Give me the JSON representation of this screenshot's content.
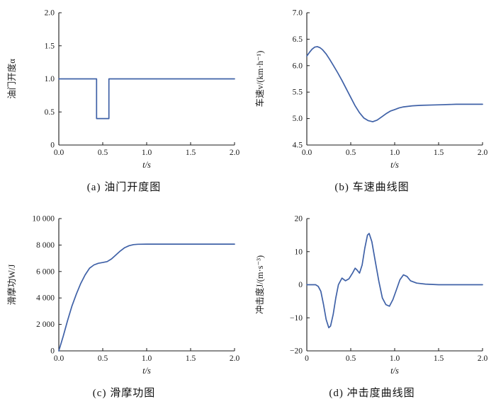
{
  "style": {
    "line_color": "#3f61a7",
    "axis_color": "#1a1a1a",
    "background": "#ffffff"
  },
  "chart_data": [
    {
      "id": "a",
      "type": "line",
      "caption": "(a) 油门开度图",
      "xlabel": "t/s",
      "ylabel": "油门开度α",
      "xlim": [
        0,
        2
      ],
      "ylim": [
        0,
        2
      ],
      "xticks": [
        0,
        0.5,
        1,
        1.5,
        2
      ],
      "xtick_labels": [
        "0.0",
        "0.5",
        "1.0",
        "1.5",
        "2.0"
      ],
      "yticks": [
        0,
        0.5,
        1,
        1.5,
        2
      ],
      "ytick_labels": [
        "0",
        "0.5",
        "1.0",
        "1.5",
        "2.0"
      ],
      "points": [
        [
          0,
          1
        ],
        [
          0.43,
          1
        ],
        [
          0.43,
          0.4
        ],
        [
          0.57,
          0.4
        ],
        [
          0.57,
          1
        ],
        [
          2,
          1
        ]
      ]
    },
    {
      "id": "b",
      "type": "line",
      "caption": "(b) 车速曲线图",
      "xlabel": "t/s",
      "ylabel": "车速v/(km·h⁻¹)",
      "xlim": [
        0,
        2
      ],
      "ylim": [
        4.5,
        7
      ],
      "xticks": [
        0,
        0.5,
        1,
        1.5,
        2
      ],
      "xtick_labels": [
        "0.0",
        "0.5",
        "1.0",
        "1.5",
        "2.0"
      ],
      "yticks": [
        4.5,
        5,
        5.5,
        6,
        6.5,
        7
      ],
      "ytick_labels": [
        "4.5",
        "5.0",
        "5.5",
        "6.0",
        "6.5",
        "7.0"
      ],
      "points": [
        [
          0,
          6.18
        ],
        [
          0.03,
          6.25
        ],
        [
          0.06,
          6.31
        ],
        [
          0.09,
          6.35
        ],
        [
          0.12,
          6.36
        ],
        [
          0.15,
          6.34
        ],
        [
          0.18,
          6.3
        ],
        [
          0.22,
          6.22
        ],
        [
          0.26,
          6.12
        ],
        [
          0.3,
          6.01
        ],
        [
          0.35,
          5.87
        ],
        [
          0.4,
          5.72
        ],
        [
          0.45,
          5.56
        ],
        [
          0.5,
          5.4
        ],
        [
          0.55,
          5.24
        ],
        [
          0.6,
          5.11
        ],
        [
          0.65,
          5.01
        ],
        [
          0.7,
          4.96
        ],
        [
          0.75,
          4.94
        ],
        [
          0.8,
          4.97
        ],
        [
          0.85,
          5.03
        ],
        [
          0.9,
          5.09
        ],
        [
          0.95,
          5.14
        ],
        [
          1.0,
          5.17
        ],
        [
          1.05,
          5.2
        ],
        [
          1.1,
          5.22
        ],
        [
          1.2,
          5.24
        ],
        [
          1.3,
          5.25
        ],
        [
          1.5,
          5.26
        ],
        [
          1.7,
          5.27
        ],
        [
          2.0,
          5.27
        ]
      ]
    },
    {
      "id": "c",
      "type": "line",
      "caption": "(c) 滑摩功图",
      "xlabel": "t/s",
      "ylabel": "滑摩功W/J",
      "xlim": [
        0,
        2
      ],
      "ylim": [
        0,
        10000
      ],
      "xticks": [
        0,
        0.5,
        1,
        1.5,
        2
      ],
      "xtick_labels": [
        "0.0",
        "0.5",
        "1.0",
        "1.5",
        "2.0"
      ],
      "yticks": [
        0,
        2000,
        4000,
        6000,
        8000,
        10000
      ],
      "ytick_labels": [
        "0",
        "2 000",
        "4 000",
        "6 000",
        "8 000",
        "10 000"
      ],
      "points": [
        [
          0,
          0
        ],
        [
          0.05,
          1100
        ],
        [
          0.1,
          2300
        ],
        [
          0.15,
          3400
        ],
        [
          0.2,
          4300
        ],
        [
          0.25,
          5100
        ],
        [
          0.3,
          5750
        ],
        [
          0.35,
          6250
        ],
        [
          0.4,
          6500
        ],
        [
          0.45,
          6620
        ],
        [
          0.5,
          6680
        ],
        [
          0.55,
          6750
        ],
        [
          0.6,
          6950
        ],
        [
          0.65,
          7250
        ],
        [
          0.7,
          7550
        ],
        [
          0.75,
          7800
        ],
        [
          0.8,
          7950
        ],
        [
          0.85,
          8030
        ],
        [
          0.9,
          8060
        ],
        [
          1.0,
          8070
        ],
        [
          1.2,
          8070
        ],
        [
          1.5,
          8070
        ],
        [
          2.0,
          8070
        ]
      ]
    },
    {
      "id": "d",
      "type": "line",
      "caption": "(d) 冲击度曲线图",
      "xlabel": "t/s",
      "ylabel": "冲击度J/(m·s⁻³)",
      "xlim": [
        0,
        2
      ],
      "ylim": [
        -20,
        20
      ],
      "xticks": [
        0,
        0.5,
        1,
        1.5,
        2
      ],
      "xtick_labels": [
        "0",
        "0.5",
        "1.0",
        "1.5",
        "2.0"
      ],
      "yticks": [
        -20,
        -10,
        0,
        10,
        20
      ],
      "ytick_labels": [
        "−20",
        "−10",
        "0",
        "10",
        "20"
      ],
      "points": [
        [
          0,
          0
        ],
        [
          0.1,
          0
        ],
        [
          0.13,
          -0.5
        ],
        [
          0.16,
          -2
        ],
        [
          0.19,
          -6
        ],
        [
          0.22,
          -10.5
        ],
        [
          0.25,
          -13
        ],
        [
          0.27,
          -12.5
        ],
        [
          0.3,
          -9
        ],
        [
          0.33,
          -4
        ],
        [
          0.36,
          0
        ],
        [
          0.4,
          2
        ],
        [
          0.44,
          1.2
        ],
        [
          0.48,
          1.8
        ],
        [
          0.52,
          3.5
        ],
        [
          0.55,
          5
        ],
        [
          0.57,
          4.5
        ],
        [
          0.6,
          3.5
        ],
        [
          0.63,
          6
        ],
        [
          0.66,
          11
        ],
        [
          0.69,
          15
        ],
        [
          0.71,
          15.5
        ],
        [
          0.74,
          13
        ],
        [
          0.78,
          7
        ],
        [
          0.82,
          1
        ],
        [
          0.86,
          -4
        ],
        [
          0.9,
          -6
        ],
        [
          0.94,
          -6.5
        ],
        [
          0.98,
          -4.5
        ],
        [
          1.02,
          -1.5
        ],
        [
          1.06,
          1.5
        ],
        [
          1.1,
          3
        ],
        [
          1.14,
          2.5
        ],
        [
          1.18,
          1.2
        ],
        [
          1.25,
          0.5
        ],
        [
          1.35,
          0.2
        ],
        [
          1.5,
          0
        ],
        [
          2.0,
          0
        ]
      ]
    }
  ]
}
